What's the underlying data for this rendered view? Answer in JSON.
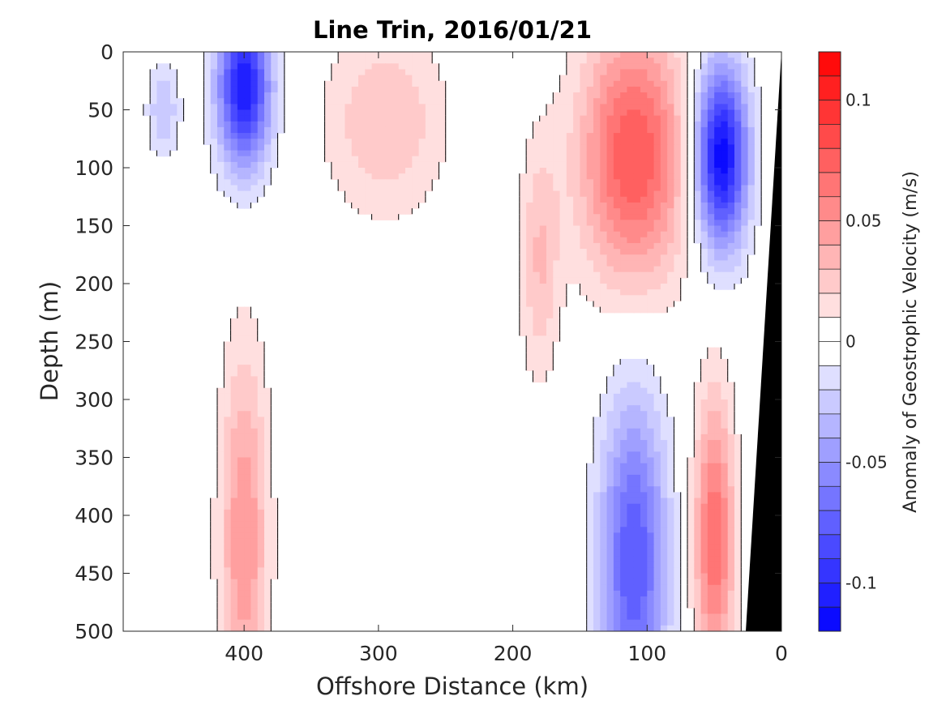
{
  "chart_data": {
    "type": "heatmap",
    "title": "Line Trin, 2016/01/21",
    "xlabel": "Offshore Distance (km)",
    "ylabel": "Depth (m)",
    "xlim": [
      490,
      0
    ],
    "ylim": [
      0,
      500
    ],
    "x_ticks": [
      400,
      300,
      200,
      100,
      0
    ],
    "y_ticks": [
      0,
      50,
      100,
      150,
      200,
      250,
      300,
      350,
      400,
      450,
      500
    ],
    "colorbar": {
      "label": "Anomaly of Geostrophic Velocity (m/s)",
      "range": [
        -0.12,
        0.12
      ],
      "step": 0.01,
      "ticks": [
        -0.1,
        -0.05,
        0,
        0.05,
        0.1
      ],
      "tick_labels": [
        "-0.1",
        "-0.05",
        "0",
        "0.05",
        "0.1"
      ]
    },
    "features": [
      {
        "kind": "velocity_core",
        "x": 400,
        "depth": 30,
        "value": -0.11,
        "half_width": 20,
        "half_depth": 70
      },
      {
        "kind": "velocity_core",
        "x": 400,
        "depth": 420,
        "value": 0.05,
        "half_width": 18,
        "half_depth": 160
      },
      {
        "kind": "velocity_core",
        "x": 295,
        "depth": 60,
        "value": 0.03,
        "half_width": 45,
        "half_depth": 80
      },
      {
        "kind": "velocity_core",
        "x": 460,
        "depth": 50,
        "value": -0.03,
        "half_width": 12,
        "half_depth": 40
      },
      {
        "kind": "velocity_core",
        "x": 180,
        "depth": 180,
        "value": 0.03,
        "half_width": 15,
        "half_depth": 100
      },
      {
        "kind": "velocity_core",
        "x": 110,
        "depth": 90,
        "value": 0.08,
        "half_width": 40,
        "half_depth": 110
      },
      {
        "kind": "velocity_core",
        "x": 110,
        "depth": 440,
        "value": -0.08,
        "half_width": 25,
        "half_depth": 140
      },
      {
        "kind": "velocity_core",
        "x": 45,
        "depth": 90,
        "value": -0.12,
        "half_width": 20,
        "half_depth": 80
      },
      {
        "kind": "velocity_core",
        "x": 50,
        "depth": 420,
        "value": 0.07,
        "half_width": 15,
        "half_depth": 120
      }
    ],
    "bathymetry_color": "#000000",
    "contour_color": "#000000"
  }
}
